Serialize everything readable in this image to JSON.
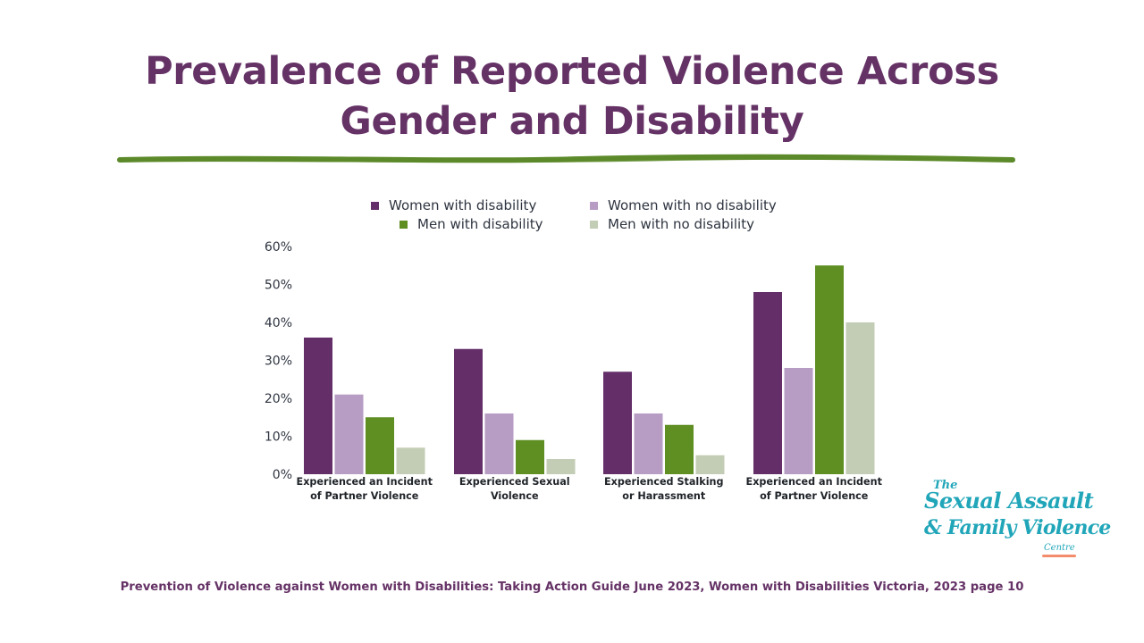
{
  "title": {
    "line1": "Prevalence of Reported Violence Across",
    "line2": "Gender and Disability"
  },
  "colors": {
    "title": "#653266",
    "underline": "#5c8a2a",
    "women_disability": "#642f68",
    "women_no_disability": "#b79cc4",
    "men_disability": "#5f8e23",
    "men_no_disability": "#c3cdb5",
    "logo": "#21a6b9",
    "logo_accent": "#f28c6b"
  },
  "chart_data": {
    "type": "bar",
    "title": "",
    "xlabel": "",
    "ylabel": "",
    "ylim": [
      0,
      60
    ],
    "yticks": [
      0,
      10,
      20,
      30,
      40,
      50,
      60
    ],
    "ytick_labels": [
      "0%",
      "10%",
      "20%",
      "30%",
      "40%",
      "50%",
      "60%"
    ],
    "grid": false,
    "legend_position": "top",
    "categories": [
      [
        "Experienced an Incident",
        "of Partner Violence"
      ],
      [
        "Experienced Sexual",
        "Violence"
      ],
      [
        "Experienced Stalking",
        "or Harassment"
      ],
      [
        "Experienced an Incident",
        "of Partner Violence"
      ]
    ],
    "series": [
      {
        "name": "Women with disability",
        "values": [
          36,
          33,
          27,
          48
        ]
      },
      {
        "name": "Women with no disability",
        "values": [
          21,
          16,
          16,
          28
        ]
      },
      {
        "name": "Men with disability",
        "values": [
          15,
          9,
          13,
          55
        ]
      },
      {
        "name": "Men with no disability",
        "values": [
          7,
          4,
          5,
          40
        ]
      }
    ]
  },
  "logo": {
    "the": "The",
    "line1": "Sexual Assault",
    "line2": "& Family Violence",
    "centre": "Centre"
  },
  "source": "Prevention of Violence against Women with Disabilities: Taking Action Guide June 2023, Women with Disabilities Victoria, 2023 page 10"
}
